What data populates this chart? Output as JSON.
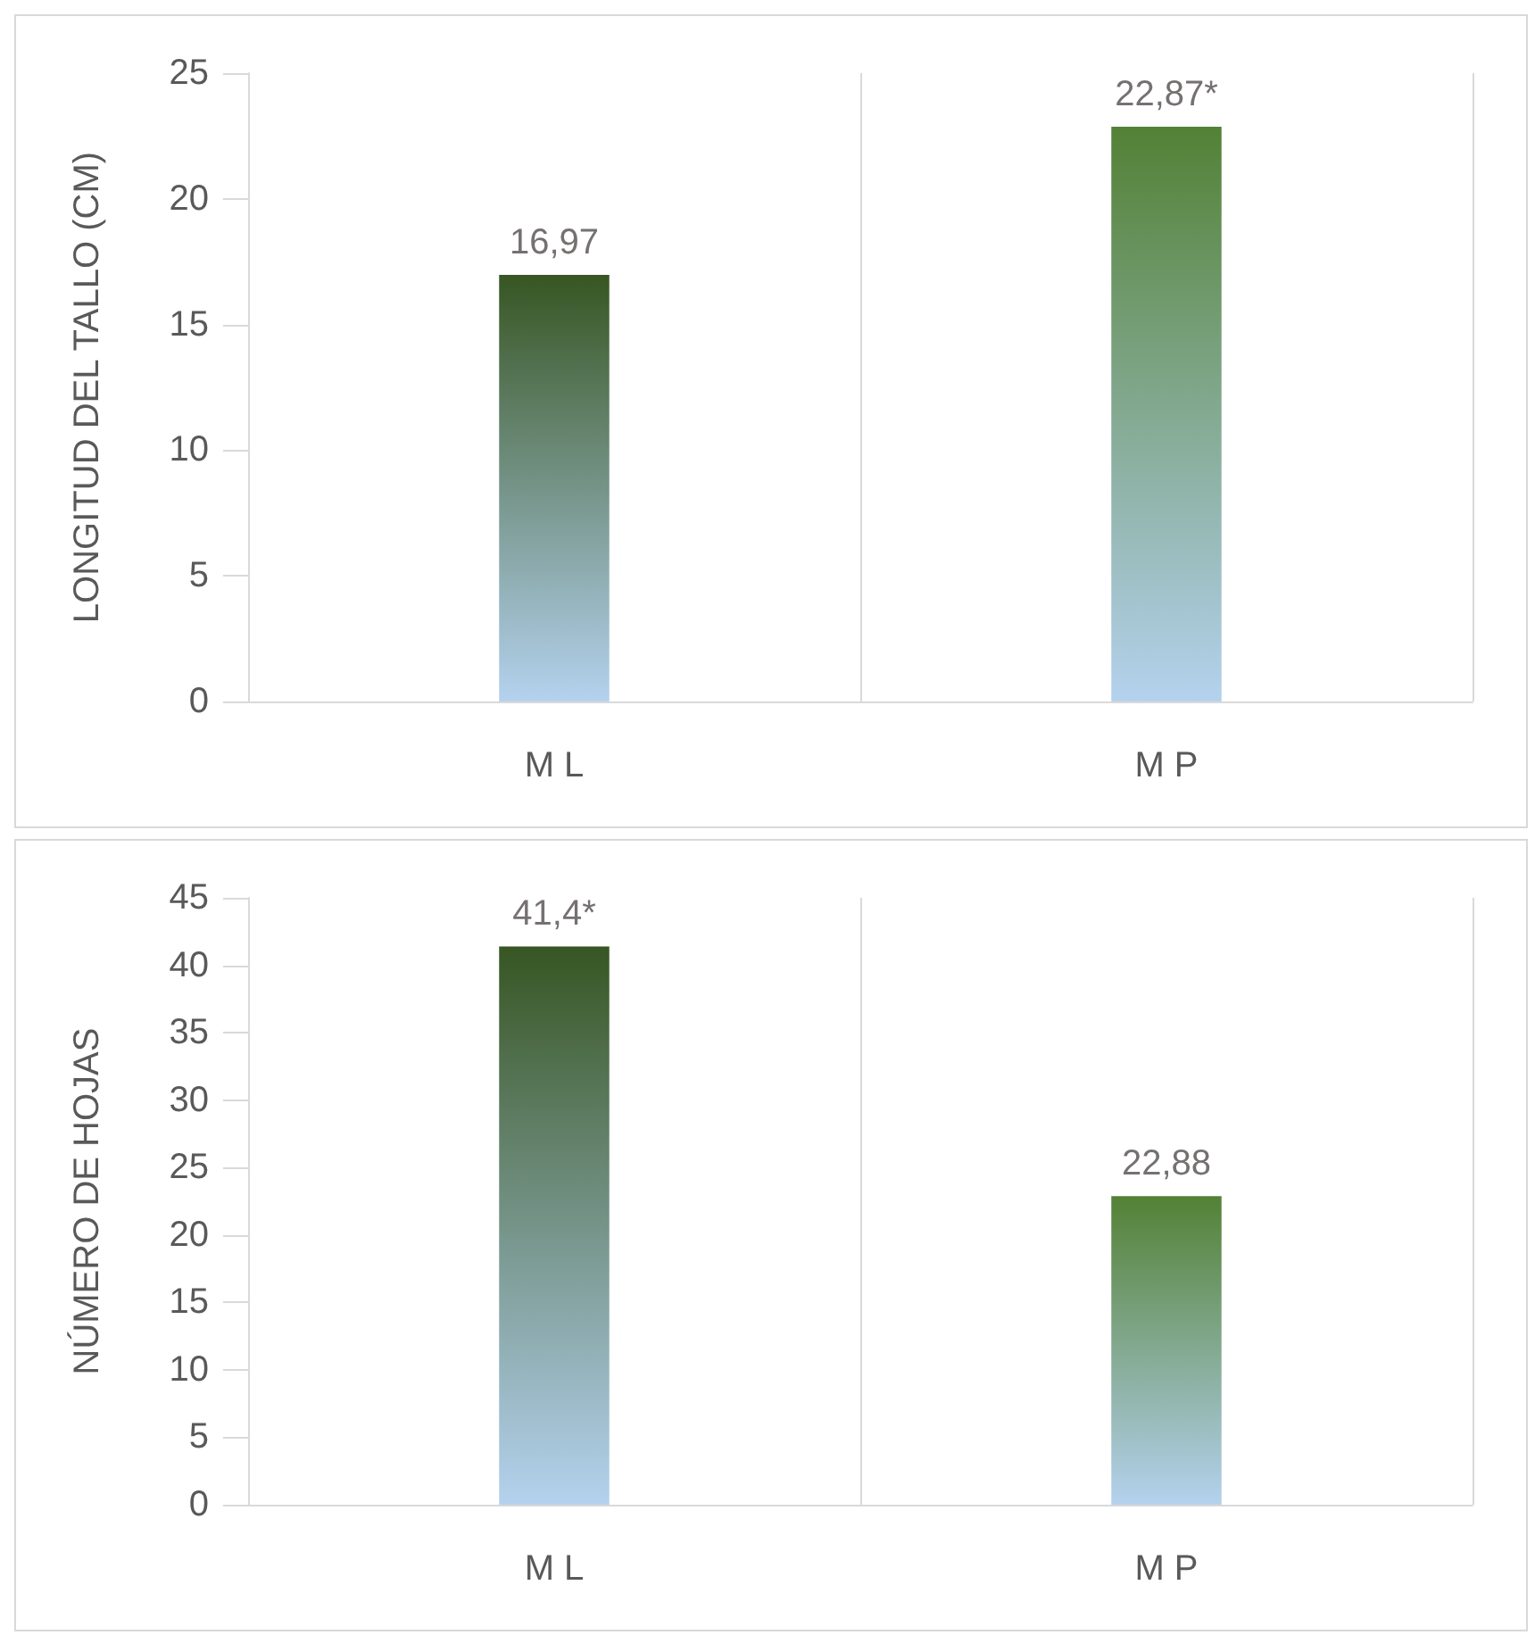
{
  "chart_data": [
    {
      "type": "bar",
      "ylabel": "LONGITUD DEL TALLO (CM)",
      "categories": [
        "M L",
        "M P"
      ],
      "values": [
        16.97,
        22.87
      ],
      "colors": [
        "#375623",
        "#538135"
      ],
      "value_labels": [
        "16,97",
        "22,87*"
      ],
      "ylim": [
        0,
        25
      ],
      "yticks": [
        0,
        5,
        10,
        15,
        20,
        25
      ],
      "grid": "x"
    },
    {
      "type": "bar",
      "ylabel": "NÚMERO DE HOJAS",
      "categories": [
        "M L",
        "M P"
      ],
      "values": [
        41.4,
        22.88
      ],
      "colors": [
        "#375623",
        "#538135"
      ],
      "value_labels": [
        "41,4*",
        "22,88"
      ],
      "ylim": [
        0,
        45
      ],
      "yticks": [
        0,
        5,
        10,
        15,
        20,
        25,
        30,
        35,
        40,
        45
      ],
      "grid": "x"
    }
  ]
}
